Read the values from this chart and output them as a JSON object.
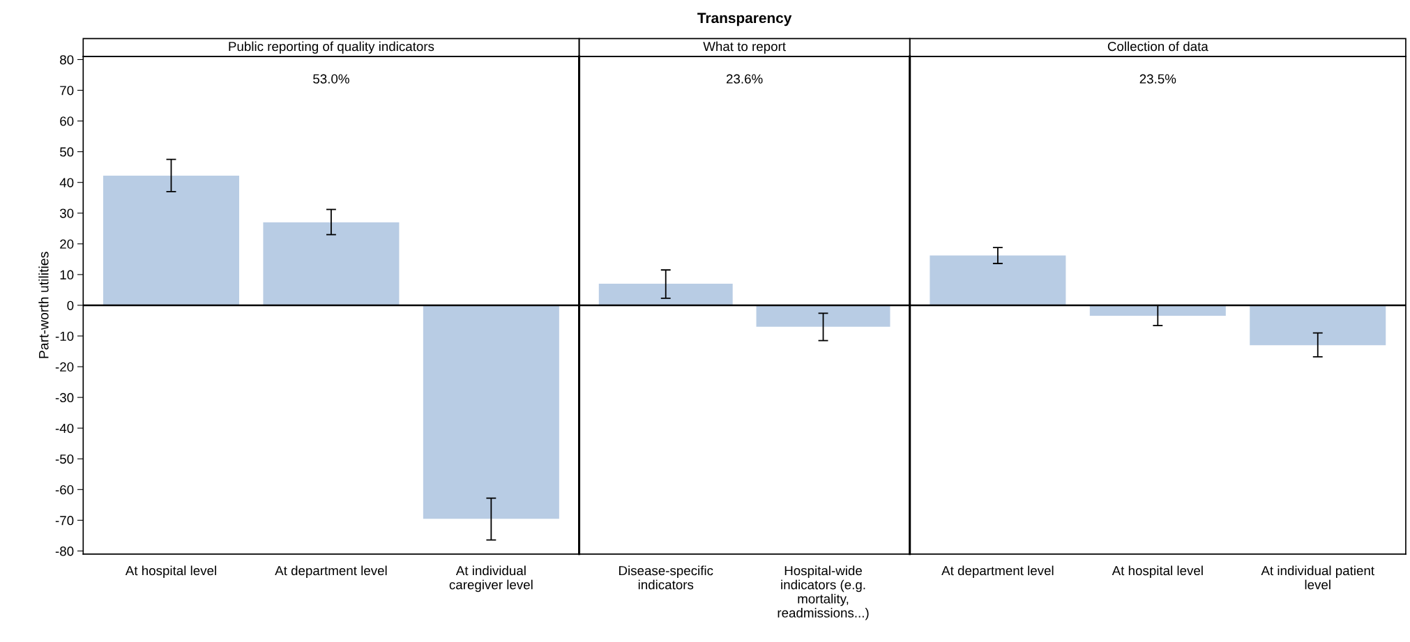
{
  "chart_data": [
    {
      "type": "bar",
      "subtitle": "Public reporting of quality indicators",
      "ylabel": "Part-worth utilities",
      "categories": [
        "At hospital level",
        "At department level",
        "At individual\ncaregiver level"
      ],
      "values": [
        42.2,
        27.0,
        -69.5
      ],
      "errors": [
        [
          37.0,
          47.5
        ],
        [
          23.0,
          31.2
        ],
        [
          -76.4,
          -62.8
        ]
      ],
      "color": "#b8cce4",
      "ylim": [
        -81,
        81
      ],
      "yticks": [
        -80,
        -70,
        -60,
        -50,
        -40,
        -30,
        -20,
        -10,
        0,
        10,
        20,
        30,
        40,
        50,
        60,
        70,
        80
      ],
      "ref_lines": [
        {
          "axis": "y",
          "value": 0,
          "color": "#000000"
        }
      ],
      "annotations": [
        "53.0%"
      ],
      "grid": false
    },
    {
      "type": "bar",
      "title": "Transparency",
      "subtitle": "What to report",
      "categories": [
        "Disease-specific\nindicators",
        "Hospital-wide\nindicators (e.g.\nmortality,\nreadmissions...)"
      ],
      "values": [
        7.0,
        -7.0
      ],
      "errors": [
        [
          2.3,
          11.5
        ],
        [
          -11.5,
          -2.6
        ]
      ],
      "color": "#b8cce4",
      "ylim": [
        -81,
        81
      ],
      "tick_labels": "x",
      "ref_lines": [
        {
          "axis": "y",
          "value": 0,
          "color": "#000000"
        }
      ],
      "annotations": [
        "23.6%"
      ],
      "grid": false
    },
    {
      "type": "bar",
      "subtitle": "Collection of data",
      "categories": [
        "At department level",
        "At hospital level",
        "At individual patient\nlevel"
      ],
      "values": [
        16.2,
        -3.4,
        -13.0
      ],
      "errors": [
        [
          13.6,
          18.8
        ],
        [
          -6.6,
          0
        ],
        [
          -16.8,
          -9.0
        ]
      ],
      "color": "#b8cce4",
      "ylim": [
        -81,
        81
      ],
      "tick_labels": "x",
      "ref_lines": [
        {
          "axis": "y",
          "value": 0,
          "color": "#000000"
        }
      ],
      "annotations": [
        "23.5%"
      ],
      "grid": false
    }
  ]
}
